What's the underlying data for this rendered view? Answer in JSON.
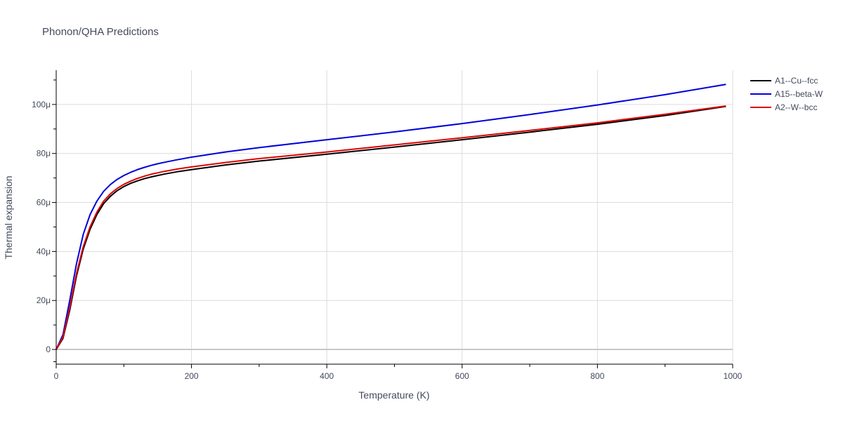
{
  "chart_data": {
    "type": "line",
    "title": "Phonon/QHA Predictions",
    "xlabel": "Temperature (K)",
    "ylabel": "Thermal expansion",
    "xlim": [
      0,
      1000
    ],
    "ylim": [
      -6,
      114
    ],
    "x_ticks": [
      0,
      200,
      400,
      600,
      800,
      1000
    ],
    "x_tick_labels": [
      "0",
      "200",
      "400",
      "600",
      "800",
      "1000"
    ],
    "y_ticks": [
      0,
      20,
      40,
      60,
      80,
      100
    ],
    "y_tick_labels": [
      "0",
      "20μ",
      "40μ",
      "60μ",
      "80μ",
      "100μ"
    ],
    "grid": true,
    "legend_position": "top-right",
    "x": [
      0,
      10,
      20,
      30,
      40,
      50,
      60,
      70,
      80,
      90,
      100,
      110,
      120,
      130,
      140,
      150,
      160,
      180,
      200,
      250,
      300,
      400,
      500,
      600,
      700,
      800,
      900,
      990
    ],
    "series": [
      {
        "name": "A1--Cu--fcc",
        "color": "#000000",
        "values": [
          0,
          4.5,
          16,
          30,
          41,
          49,
          55,
          59.5,
          62.5,
          64.8,
          66.5,
          67.8,
          68.8,
          69.7,
          70.4,
          71.0,
          71.6,
          72.6,
          73.4,
          75.3,
          76.9,
          79.7,
          82.6,
          85.6,
          88.7,
          91.9,
          95.5,
          99.2
        ]
      },
      {
        "name": "A15--beta-W",
        "color": "#0000dd",
        "values": [
          0,
          6,
          20,
          35,
          47,
          55,
          60.5,
          64.5,
          67.3,
          69.4,
          71.0,
          72.3,
          73.4,
          74.3,
          75.1,
          75.8,
          76.4,
          77.5,
          78.5,
          80.6,
          82.4,
          85.6,
          88.8,
          92.2,
          95.9,
          99.8,
          104.0,
          108.2
        ]
      },
      {
        "name": "A2--W--bcc",
        "color": "#dd0000",
        "values": [
          0,
          5,
          17,
          31,
          42,
          50,
          56,
          60.5,
          63.5,
          65.7,
          67.4,
          68.7,
          69.8,
          70.7,
          71.5,
          72.1,
          72.7,
          73.7,
          74.5,
          76.3,
          77.9,
          80.6,
          83.5,
          86.4,
          89.4,
          92.5,
          96.0,
          99.4
        ]
      }
    ]
  }
}
